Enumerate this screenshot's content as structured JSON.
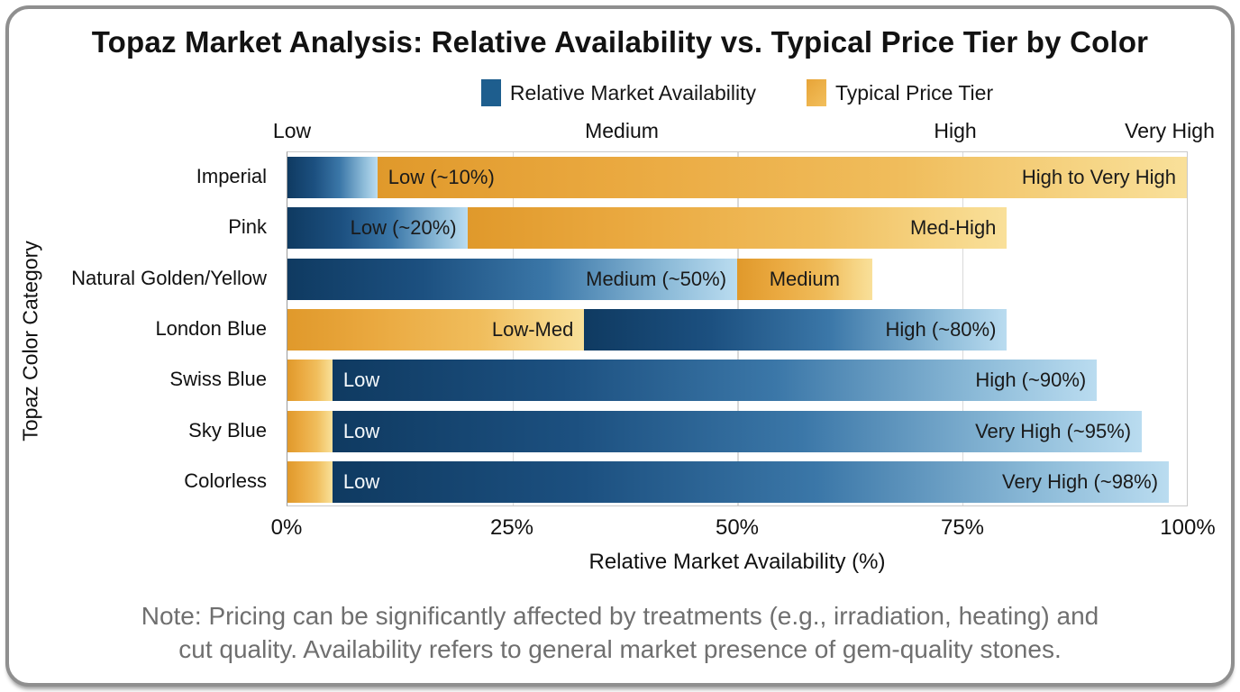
{
  "note": {
    "line1": "Note: Pricing can be significantly affected by treatments (e.g., irradiation, heating) and",
    "line2": "cut quality. Availability refers to general market presence of gem-quality stones."
  },
  "chart_data": {
    "type": "bar",
    "orientation": "horizontal",
    "title": "Topaz Market Analysis: Relative Availability vs. Typical Price Tier by Color",
    "xlabel": "Relative Market Availability (%)",
    "ylabel": "Topaz Color Category",
    "xlim": [
      0,
      100
    ],
    "grid": "on",
    "grid_pcts": [
      25,
      50,
      75
    ],
    "legend_position": "top-center",
    "legend": [
      {
        "label": "Relative Market Availability",
        "series": "availability",
        "color": "#1e5e8e"
      },
      {
        "label": "Typical Price Tier",
        "series": "price",
        "color": "#e8a63c"
      }
    ],
    "xticks": [
      {
        "label": "0%",
        "pos": 0
      },
      {
        "label": "25%",
        "pos": 25
      },
      {
        "label": "50%",
        "pos": 50
      },
      {
        "label": "75%",
        "pos": 75
      },
      {
        "label": "100%",
        "pos": 100
      }
    ],
    "top_axis_labels": [
      {
        "label": "Low",
        "pos": 0.6
      },
      {
        "label": "Medium",
        "pos": 37.2
      },
      {
        "label": "High",
        "pos": 74.2
      },
      {
        "label": "Very High",
        "pos": 98
      }
    ],
    "categories": [
      "Imperial",
      "Pink",
      "Natural Golden/Yellow",
      "London Blue",
      "Swiss Blue",
      "Sky Blue",
      "Colorless"
    ],
    "series": [
      {
        "name": "Relative Market Availability",
        "values": [
          10,
          20,
          50,
          80,
          90,
          95,
          98
        ]
      },
      {
        "name": "Typical Price Tier",
        "values": [
          "High to Very High",
          "Med-High",
          "Medium",
          "Low-Med",
          "Low",
          "Low",
          "Low"
        ]
      }
    ],
    "rows": [
      {
        "category": "Imperial",
        "segments": [
          {
            "series": "availability",
            "start": 0,
            "end": 10,
            "labels": []
          },
          {
            "series": "price",
            "start": 10,
            "end": 100,
            "labels": [
              {
                "text": "Low (~10%)",
                "align": "left",
                "tone": "dark"
              },
              {
                "text": "High to Very High",
                "align": "right",
                "tone": "dark"
              }
            ]
          }
        ]
      },
      {
        "category": "Pink",
        "segments": [
          {
            "series": "availability",
            "start": 0,
            "end": 20,
            "labels": [
              {
                "text": "Low (~20%)",
                "align": "right",
                "tone": "dark"
              }
            ]
          },
          {
            "series": "price",
            "start": 20,
            "end": 80,
            "labels": [
              {
                "text": "Med-High",
                "align": "right",
                "tone": "dark"
              }
            ]
          }
        ]
      },
      {
        "category": "Natural Golden/Yellow",
        "segments": [
          {
            "series": "availability",
            "start": 0,
            "end": 50,
            "labels": [
              {
                "text": "Medium (~50%)",
                "align": "right",
                "tone": "dark"
              }
            ]
          },
          {
            "series": "price",
            "start": 50,
            "end": 65,
            "labels": [
              {
                "text": "Medium",
                "align": "center",
                "tone": "dark"
              }
            ]
          }
        ]
      },
      {
        "category": "London Blue",
        "segments": [
          {
            "series": "price",
            "start": 0,
            "end": 33,
            "labels": [
              {
                "text": "Low-Med",
                "align": "right",
                "tone": "dark"
              }
            ]
          },
          {
            "series": "availability",
            "start": 33,
            "end": 80,
            "labels": [
              {
                "text": "High (~80%)",
                "align": "right",
                "tone": "dark"
              }
            ]
          }
        ]
      },
      {
        "category": "Swiss Blue",
        "segments": [
          {
            "series": "price",
            "start": 0,
            "end": 5,
            "labels": []
          },
          {
            "series": "availability",
            "start": 5,
            "end": 90,
            "labels": [
              {
                "text": "Low",
                "align": "left",
                "tone": "light"
              },
              {
                "text": "High (~90%)",
                "align": "right",
                "tone": "dark"
              }
            ]
          }
        ]
      },
      {
        "category": "Sky Blue",
        "segments": [
          {
            "series": "price",
            "start": 0,
            "end": 5,
            "labels": []
          },
          {
            "series": "availability",
            "start": 5,
            "end": 95,
            "labels": [
              {
                "text": "Low",
                "align": "left",
                "tone": "light"
              },
              {
                "text": "Very High (~95%)",
                "align": "right",
                "tone": "dark"
              }
            ]
          }
        ]
      },
      {
        "category": "Colorless",
        "segments": [
          {
            "series": "price",
            "start": 0,
            "end": 5,
            "labels": []
          },
          {
            "series": "availability",
            "start": 5,
            "end": 98,
            "labels": [
              {
                "text": "Low",
                "align": "left",
                "tone": "light"
              },
              {
                "text": "Very High (~98%)",
                "align": "right",
                "tone": "dark"
              }
            ]
          }
        ]
      }
    ],
    "colors": {
      "availability_dark": "#0f3a61",
      "availability_light": "#badcf0",
      "price_dark": "#e0992b",
      "price_light": "#f9e09a",
      "grid": "#d9d9d9",
      "note_text": "#6f6f6f",
      "frame_border": "#8f8f8f"
    }
  }
}
